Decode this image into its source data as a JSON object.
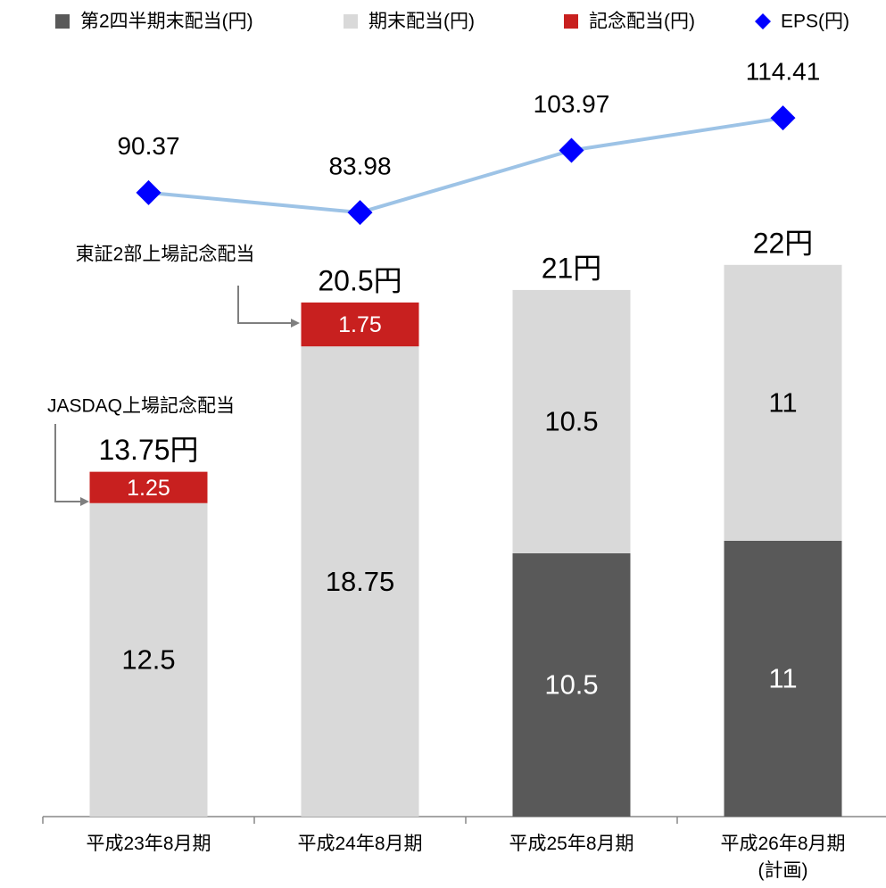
{
  "chart_data": {
    "type": "bar",
    "categories": [
      "平成23年8月期",
      "平成24年8月期",
      "平成25年8月期",
      "平成26年8月期\n(計画)"
    ],
    "series": [
      {
        "name": "第2四半期末配当(円)",
        "color": "#595959",
        "text_color": "#ffffff",
        "values": [
          null,
          null,
          10.5,
          11
        ]
      },
      {
        "name": "期末配当(円)",
        "color": "#d9d9d9",
        "text_color": "#000000",
        "values": [
          12.5,
          18.75,
          10.5,
          11
        ]
      },
      {
        "name": "記念配当(円)",
        "color": "#c8201f",
        "text_color": "#ffffff",
        "values": [
          1.25,
          1.75,
          null,
          null
        ]
      },
      {
        "name": "EPS(円)",
        "type": "line",
        "axis": "y2",
        "color": "#0000ff",
        "line_color": "#9dc3e6",
        "values": [
          90.37,
          83.98,
          103.97,
          114.41
        ]
      }
    ],
    "totals": [
      13.75,
      20.5,
      21,
      22
    ],
    "total_labels": [
      "13.75円",
      "20.5円",
      "21円",
      "22円"
    ],
    "annotations": [
      "JASDAQ上場記念配当",
      "東証2部上場記念配当"
    ],
    "ylim": [
      0,
      30
    ],
    "y2lim": [
      -110.5,
      131.7
    ],
    "legend": "top"
  }
}
